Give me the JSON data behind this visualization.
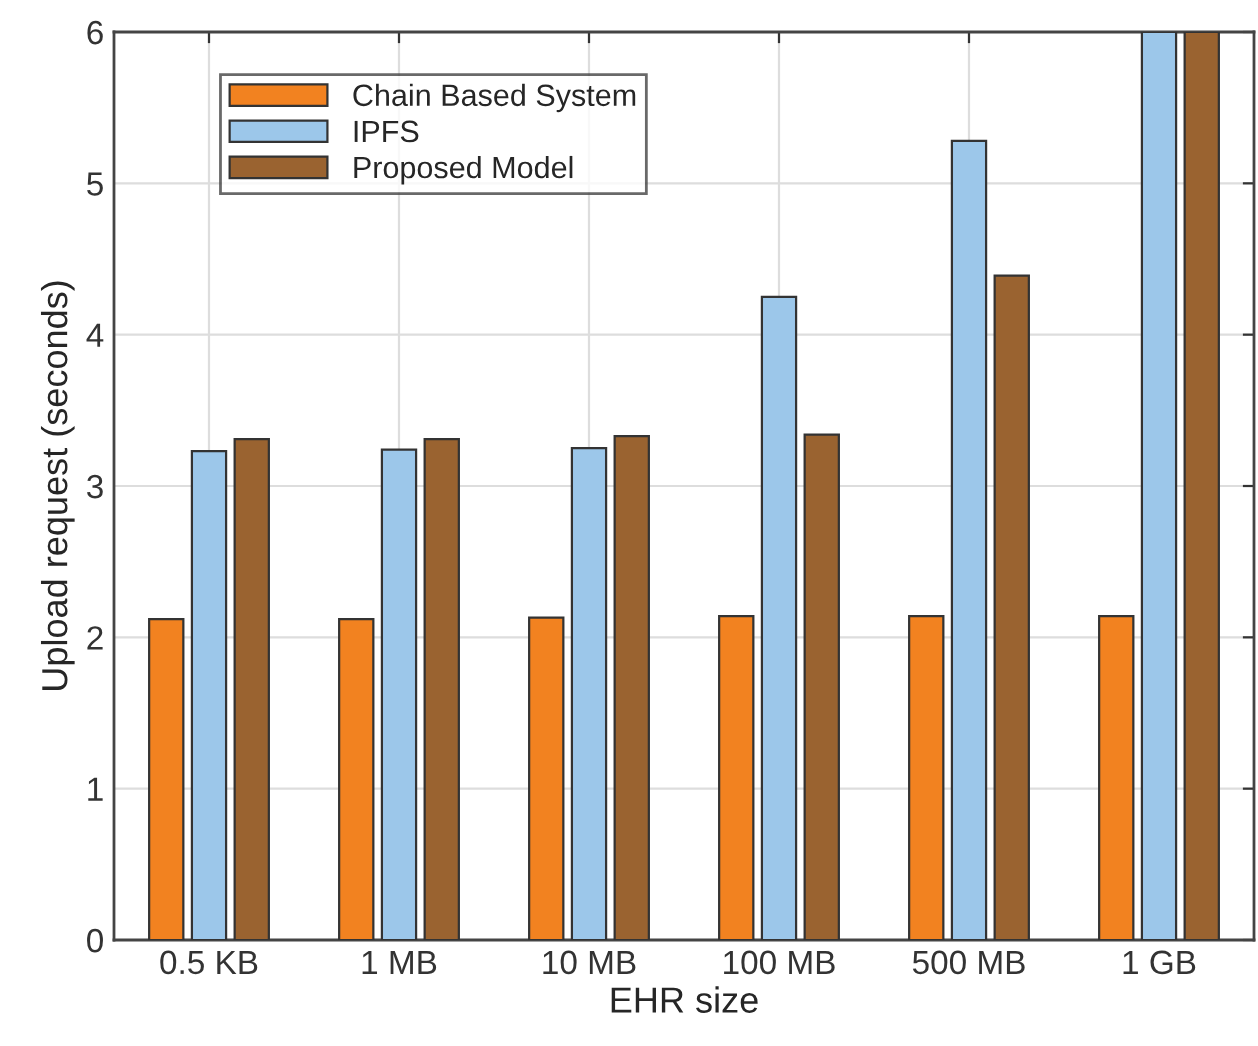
{
  "chart_data": {
    "type": "bar",
    "xlabel": "EHR size",
    "ylabel": "Upload request (seconds)",
    "categories": [
      "0.5 KB",
      "1 MB",
      "10 MB",
      "100 MB",
      "500 MB",
      "1 GB"
    ],
    "series": [
      {
        "name": "Chain Based System",
        "color": "#f28220",
        "values": [
          2.12,
          2.12,
          2.13,
          2.14,
          2.14,
          2.14
        ]
      },
      {
        "name": "IPFS",
        "color": "#9cc7ea",
        "values": [
          3.23,
          3.24,
          3.25,
          4.25,
          5.28,
          6
        ]
      },
      {
        "name": "Proposed Model",
        "color": "#9a6330",
        "values": [
          3.31,
          3.31,
          3.33,
          3.34,
          4.39,
          6
        ]
      }
    ],
    "ylim": [
      0,
      6
    ],
    "yticks": [
      0,
      1,
      2,
      3,
      4,
      5,
      6
    ],
    "grid": true,
    "legend": "top left"
  }
}
